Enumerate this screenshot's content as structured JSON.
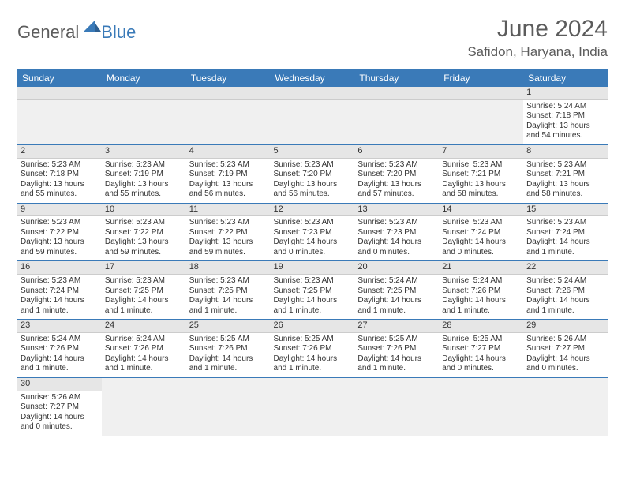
{
  "logo": {
    "text1": "General",
    "text2": "Blue"
  },
  "title": "June 2024",
  "location": "Safidon, Haryana, India",
  "colors": {
    "header_bg": "#3a7ab8",
    "header_text": "#ffffff",
    "daynum_bg": "#e6e6e6",
    "border": "#3a7ab8",
    "text": "#333333",
    "title_text": "#5c5c5c"
  },
  "day_labels": [
    "Sunday",
    "Monday",
    "Tuesday",
    "Wednesday",
    "Thursday",
    "Friday",
    "Saturday"
  ],
  "weeks": [
    [
      null,
      null,
      null,
      null,
      null,
      null,
      {
        "n": "1",
        "sr": "Sunrise: 5:24 AM",
        "ss": "Sunset: 7:18 PM",
        "dl": "Daylight: 13 hours and 54 minutes."
      }
    ],
    [
      {
        "n": "2",
        "sr": "Sunrise: 5:23 AM",
        "ss": "Sunset: 7:18 PM",
        "dl": "Daylight: 13 hours and 55 minutes."
      },
      {
        "n": "3",
        "sr": "Sunrise: 5:23 AM",
        "ss": "Sunset: 7:19 PM",
        "dl": "Daylight: 13 hours and 55 minutes."
      },
      {
        "n": "4",
        "sr": "Sunrise: 5:23 AM",
        "ss": "Sunset: 7:19 PM",
        "dl": "Daylight: 13 hours and 56 minutes."
      },
      {
        "n": "5",
        "sr": "Sunrise: 5:23 AM",
        "ss": "Sunset: 7:20 PM",
        "dl": "Daylight: 13 hours and 56 minutes."
      },
      {
        "n": "6",
        "sr": "Sunrise: 5:23 AM",
        "ss": "Sunset: 7:20 PM",
        "dl": "Daylight: 13 hours and 57 minutes."
      },
      {
        "n": "7",
        "sr": "Sunrise: 5:23 AM",
        "ss": "Sunset: 7:21 PM",
        "dl": "Daylight: 13 hours and 58 minutes."
      },
      {
        "n": "8",
        "sr": "Sunrise: 5:23 AM",
        "ss": "Sunset: 7:21 PM",
        "dl": "Daylight: 13 hours and 58 minutes."
      }
    ],
    [
      {
        "n": "9",
        "sr": "Sunrise: 5:23 AM",
        "ss": "Sunset: 7:22 PM",
        "dl": "Daylight: 13 hours and 59 minutes."
      },
      {
        "n": "10",
        "sr": "Sunrise: 5:23 AM",
        "ss": "Sunset: 7:22 PM",
        "dl": "Daylight: 13 hours and 59 minutes."
      },
      {
        "n": "11",
        "sr": "Sunrise: 5:23 AM",
        "ss": "Sunset: 7:22 PM",
        "dl": "Daylight: 13 hours and 59 minutes."
      },
      {
        "n": "12",
        "sr": "Sunrise: 5:23 AM",
        "ss": "Sunset: 7:23 PM",
        "dl": "Daylight: 14 hours and 0 minutes."
      },
      {
        "n": "13",
        "sr": "Sunrise: 5:23 AM",
        "ss": "Sunset: 7:23 PM",
        "dl": "Daylight: 14 hours and 0 minutes."
      },
      {
        "n": "14",
        "sr": "Sunrise: 5:23 AM",
        "ss": "Sunset: 7:24 PM",
        "dl": "Daylight: 14 hours and 0 minutes."
      },
      {
        "n": "15",
        "sr": "Sunrise: 5:23 AM",
        "ss": "Sunset: 7:24 PM",
        "dl": "Daylight: 14 hours and 1 minute."
      }
    ],
    [
      {
        "n": "16",
        "sr": "Sunrise: 5:23 AM",
        "ss": "Sunset: 7:24 PM",
        "dl": "Daylight: 14 hours and 1 minute."
      },
      {
        "n": "17",
        "sr": "Sunrise: 5:23 AM",
        "ss": "Sunset: 7:25 PM",
        "dl": "Daylight: 14 hours and 1 minute."
      },
      {
        "n": "18",
        "sr": "Sunrise: 5:23 AM",
        "ss": "Sunset: 7:25 PM",
        "dl": "Daylight: 14 hours and 1 minute."
      },
      {
        "n": "19",
        "sr": "Sunrise: 5:23 AM",
        "ss": "Sunset: 7:25 PM",
        "dl": "Daylight: 14 hours and 1 minute."
      },
      {
        "n": "20",
        "sr": "Sunrise: 5:24 AM",
        "ss": "Sunset: 7:25 PM",
        "dl": "Daylight: 14 hours and 1 minute."
      },
      {
        "n": "21",
        "sr": "Sunrise: 5:24 AM",
        "ss": "Sunset: 7:26 PM",
        "dl": "Daylight: 14 hours and 1 minute."
      },
      {
        "n": "22",
        "sr": "Sunrise: 5:24 AM",
        "ss": "Sunset: 7:26 PM",
        "dl": "Daylight: 14 hours and 1 minute."
      }
    ],
    [
      {
        "n": "23",
        "sr": "Sunrise: 5:24 AM",
        "ss": "Sunset: 7:26 PM",
        "dl": "Daylight: 14 hours and 1 minute."
      },
      {
        "n": "24",
        "sr": "Sunrise: 5:24 AM",
        "ss": "Sunset: 7:26 PM",
        "dl": "Daylight: 14 hours and 1 minute."
      },
      {
        "n": "25",
        "sr": "Sunrise: 5:25 AM",
        "ss": "Sunset: 7:26 PM",
        "dl": "Daylight: 14 hours and 1 minute."
      },
      {
        "n": "26",
        "sr": "Sunrise: 5:25 AM",
        "ss": "Sunset: 7:26 PM",
        "dl": "Daylight: 14 hours and 1 minute."
      },
      {
        "n": "27",
        "sr": "Sunrise: 5:25 AM",
        "ss": "Sunset: 7:26 PM",
        "dl": "Daylight: 14 hours and 1 minute."
      },
      {
        "n": "28",
        "sr": "Sunrise: 5:25 AM",
        "ss": "Sunset: 7:27 PM",
        "dl": "Daylight: 14 hours and 0 minutes."
      },
      {
        "n": "29",
        "sr": "Sunrise: 5:26 AM",
        "ss": "Sunset: 7:27 PM",
        "dl": "Daylight: 14 hours and 0 minutes."
      }
    ],
    [
      {
        "n": "30",
        "sr": "Sunrise: 5:26 AM",
        "ss": "Sunset: 7:27 PM",
        "dl": "Daylight: 14 hours and 0 minutes."
      },
      null,
      null,
      null,
      null,
      null,
      null
    ]
  ]
}
